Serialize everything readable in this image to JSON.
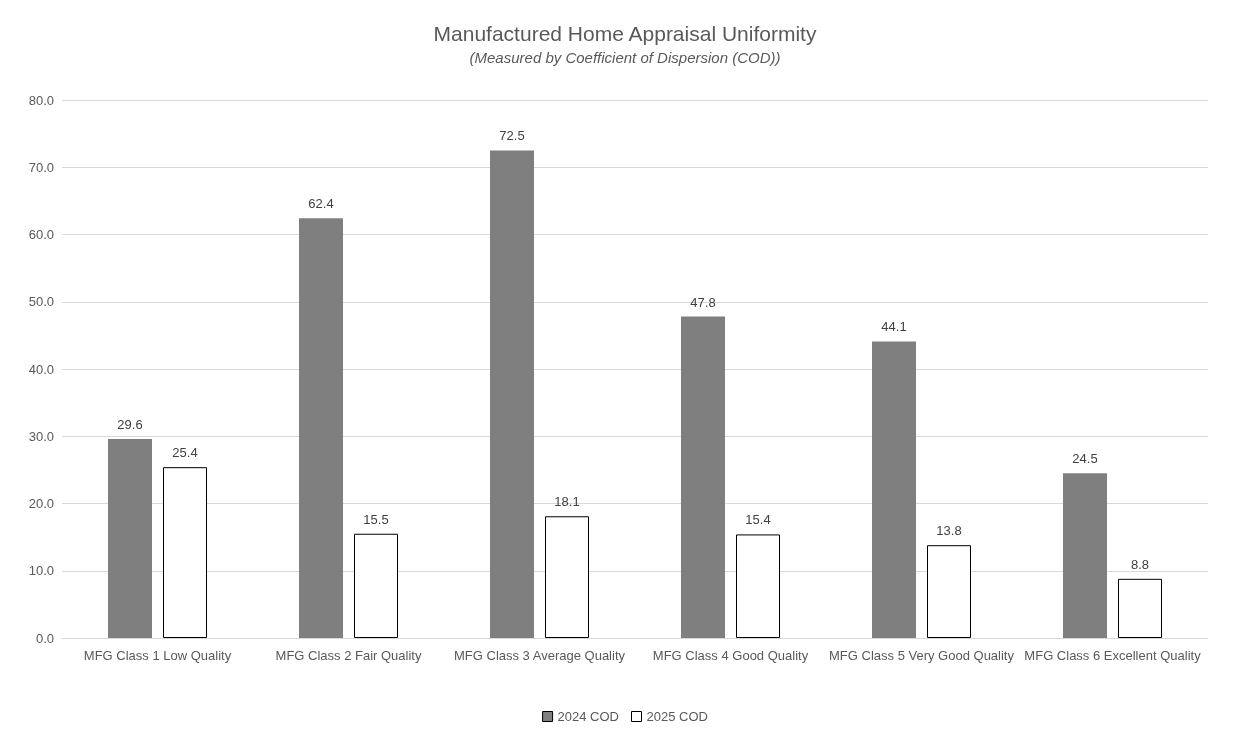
{
  "chart_data": {
    "type": "bar",
    "title": "Manufactured Home Appraisal Uniformity",
    "subtitle": "(Measured by Coefficient of Dispersion (COD))",
    "categories": [
      "MFG Class 1 Low Quality",
      "MFG Class 2 Fair Quality",
      "MFG Class 3 Average Quality",
      "MFG Class 4 Good Quality",
      "MFG Class 5 Very Good Quality",
      "MFG Class 6 Excellent Quality"
    ],
    "series": [
      {
        "name": "2024 COD",
        "color": "#7f7f7f",
        "values": [
          29.6,
          62.4,
          72.5,
          47.8,
          44.1,
          24.5
        ]
      },
      {
        "name": "2025 COD",
        "color": "#ffffff",
        "values": [
          25.4,
          15.5,
          18.1,
          15.4,
          13.8,
          8.8
        ]
      }
    ],
    "ylim": [
      0,
      80
    ],
    "yticks": [
      {
        "value": 0,
        "label": "0.0"
      },
      {
        "value": 10,
        "label": "10.0"
      },
      {
        "value": 20,
        "label": "20.0"
      },
      {
        "value": 30,
        "label": "30.0"
      },
      {
        "value": 40,
        "label": "40.0"
      },
      {
        "value": 50,
        "label": "50.0"
      },
      {
        "value": 60,
        "label": "60.0"
      },
      {
        "value": 70,
        "label": "70.0"
      },
      {
        "value": 80,
        "label": "80.0"
      }
    ],
    "grid": "y",
    "legend": "bottom",
    "data_labels": true
  }
}
